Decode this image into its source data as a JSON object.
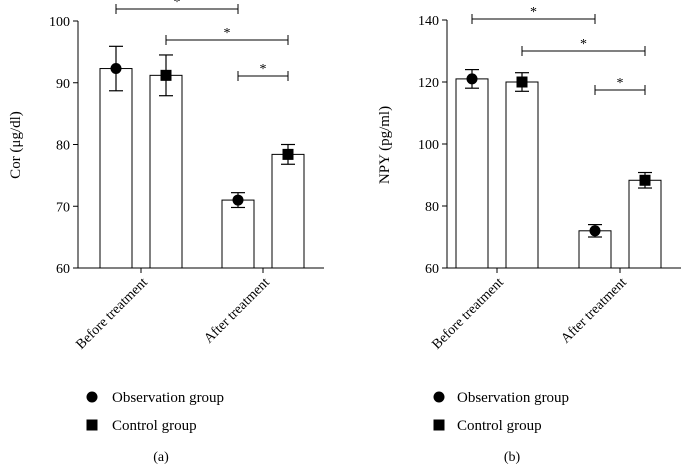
{
  "chart_data": [
    {
      "type": "bar",
      "panel_label": "(a)",
      "ylabel": "Cor (μg/dl)",
      "ylim": [
        60,
        100
      ],
      "yticks": [
        "60",
        "70",
        "80",
        "90",
        "100"
      ],
      "categories": [
        "Before treatment",
        "After treatment"
      ],
      "series": [
        {
          "name": "Observation group",
          "marker": "circle",
          "values": [
            92.3,
            71.0
          ],
          "errors": [
            3.6,
            1.2
          ]
        },
        {
          "name": "Control group",
          "marker": "square",
          "values": [
            91.2,
            78.4
          ],
          "errors": [
            3.3,
            1.6
          ]
        }
      ],
      "annotations": [
        {
          "text": "*",
          "from": "Before treatment|Observation group",
          "to": "After treatment|Observation group",
          "level": 1
        },
        {
          "text": "*",
          "from": "Before treatment|Control group",
          "to": "After treatment|Control group",
          "level": 2
        },
        {
          "text": "*",
          "from": "After treatment|Observation group",
          "to": "After treatment|Control group",
          "level": 3
        }
      ]
    },
    {
      "type": "bar",
      "panel_label": "(b)",
      "ylabel": "NPY (pg/ml)",
      "ylim": [
        60,
        140
      ],
      "yticks": [
        "60",
        "80",
        "100",
        "120",
        "140"
      ],
      "categories": [
        "Before treatment",
        "After treatment"
      ],
      "series": [
        {
          "name": "Observation group",
          "marker": "circle",
          "values": [
            121.0,
            72.0
          ],
          "errors": [
            3.0,
            2.0
          ]
        },
        {
          "name": "Control group",
          "marker": "square",
          "values": [
            120.0,
            88.3
          ],
          "errors": [
            3.0,
            2.5
          ]
        }
      ],
      "annotations": [
        {
          "text": "*",
          "from": "Before treatment|Observation group",
          "to": "After treatment|Observation group",
          "level": 1
        },
        {
          "text": "*",
          "from": "Before treatment|Control group",
          "to": "After treatment|Control group",
          "level": 2
        },
        {
          "text": "*",
          "from": "After treatment|Observation group",
          "to": "After treatment|Control group",
          "level": 3
        }
      ]
    }
  ],
  "legend": {
    "items": [
      "Observation group",
      "Control group"
    ]
  }
}
